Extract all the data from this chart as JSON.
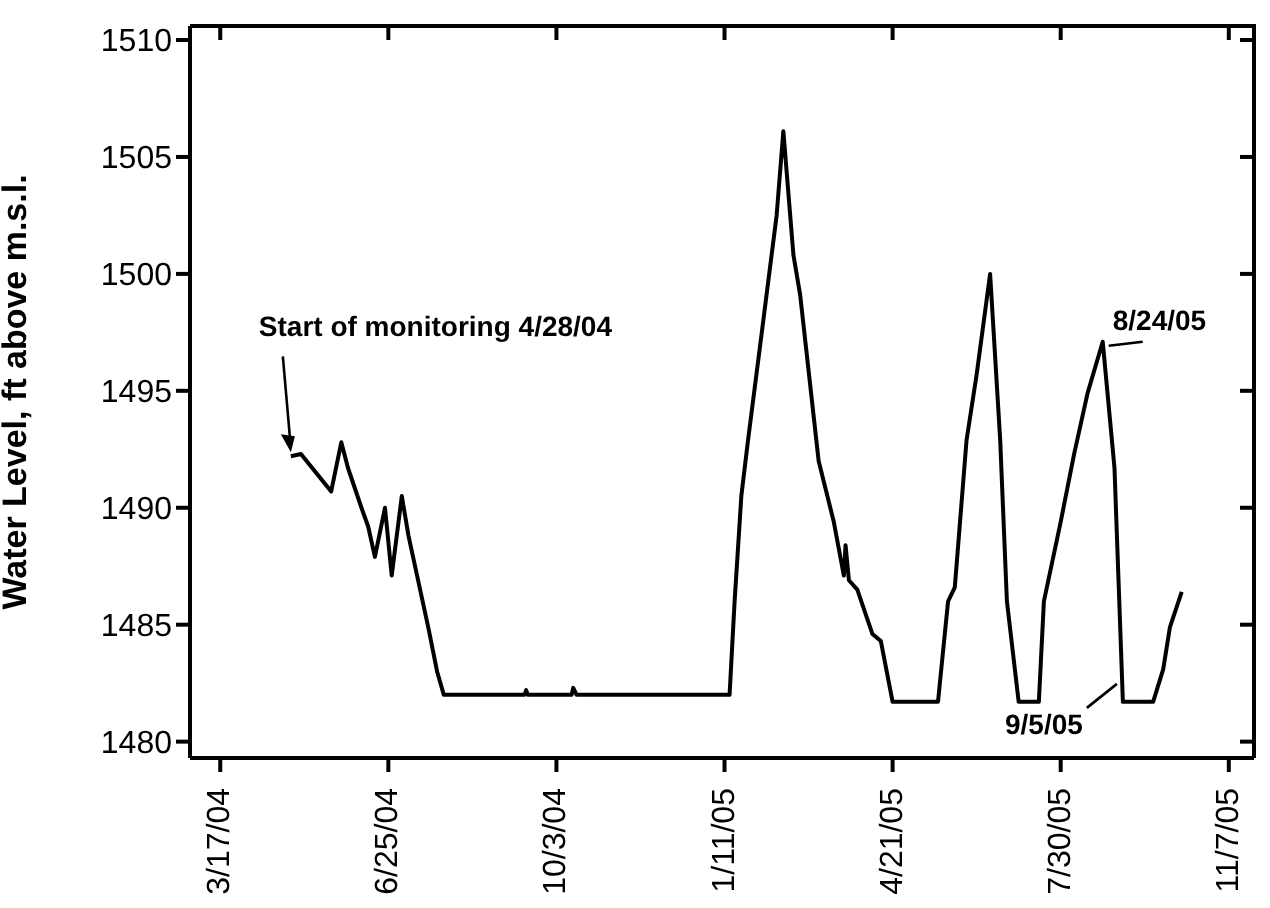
{
  "chart_data": {
    "type": "line",
    "ylabel": "Water Level, ft above m.s.l.",
    "xlim": [
      "2004-02-28",
      "2005-11-22"
    ],
    "xticks": [
      {
        "value": "2004-03-17",
        "label": "3/17/04"
      },
      {
        "value": "2004-06-25",
        "label": "6/25/04"
      },
      {
        "value": "2004-10-03",
        "label": "10/3/04"
      },
      {
        "value": "2005-01-11",
        "label": "1/11/05"
      },
      {
        "value": "2005-04-21",
        "label": "4/21/05"
      },
      {
        "value": "2005-07-30",
        "label": "7/30/05"
      },
      {
        "value": "2005-11-07",
        "label": "11/7/05"
      }
    ],
    "ylim": [
      1479.3,
      1510.6
    ],
    "yticks": [
      1480,
      1485,
      1490,
      1495,
      1500,
      1505,
      1510
    ],
    "marker": "none",
    "line_style": "solid",
    "x": [
      "2004-04-28",
      "2004-05-04",
      "2004-05-22",
      "2004-05-28",
      "2004-06-01",
      "2004-06-09",
      "2004-06-13",
      "2004-06-17",
      "2004-06-23",
      "2004-06-27",
      "2004-07-03",
      "2004-07-07",
      "2004-07-19",
      "2004-07-24",
      "2004-07-28",
      "2004-09-14",
      "2004-09-15",
      "2004-09-16",
      "2004-10-12",
      "2004-10-13",
      "2004-10-15",
      "2005-01-14",
      "2005-01-17",
      "2005-01-21",
      "2005-01-25",
      "2005-02-02",
      "2005-02-11",
      "2005-02-15",
      "2005-02-21",
      "2005-02-25",
      "2005-03-08",
      "2005-03-17",
      "2005-03-23",
      "2005-03-24",
      "2005-03-26",
      "2005-03-31",
      "2005-04-09",
      "2005-04-14",
      "2005-04-21",
      "2005-05-18",
      "2005-05-24",
      "2005-05-28",
      "2005-06-04",
      "2005-06-10",
      "2005-06-18",
      "2005-06-24",
      "2005-06-28",
      "2005-07-05",
      "2005-07-17",
      "2005-07-20",
      "2005-07-30",
      "2005-08-07",
      "2005-08-15",
      "2005-08-24",
      "2005-08-31",
      "2005-09-05",
      "2005-09-23",
      "2005-09-29",
      "2005-10-03",
      "2005-10-10"
    ],
    "series": [
      {
        "color": "#000000",
        "values": [
          1492.2,
          1492.3,
          1490.7,
          1492.8,
          1491.7,
          1490.0,
          1489.2,
          1487.9,
          1490.0,
          1487.1,
          1490.5,
          1488.8,
          1484.8,
          1483.0,
          1482.0,
          1482.0,
          1482.2,
          1482.0,
          1482.0,
          1482.3,
          1482.0,
          1482.0,
          1486.0,
          1490.5,
          1492.9,
          1497.4,
          1502.5,
          1506.1,
          1500.8,
          1499.1,
          1492.0,
          1489.4,
          1487.1,
          1488.4,
          1486.9,
          1486.5,
          1484.6,
          1484.3,
          1481.7,
          1481.7,
          1486.0,
          1486.6,
          1492.9,
          1495.7,
          1500.0,
          1492.9,
          1486.0,
          1481.7,
          1481.7,
          1486.0,
          1489.4,
          1492.3,
          1494.9,
          1497.1,
          1491.7,
          1481.7,
          1481.7,
          1483.1,
          1484.9,
          1486.4
        ]
      }
    ],
    "annotations": [
      {
        "text": "Start of monitoring 4/28/04",
        "x": "2004-04-28",
        "y": 1492.2
      },
      {
        "text": "8/24/05",
        "x": "2005-08-24",
        "y": 1497.1
      },
      {
        "text": "9/5/05",
        "x": "2005-09-05",
        "y": 1481.7
      }
    ]
  }
}
